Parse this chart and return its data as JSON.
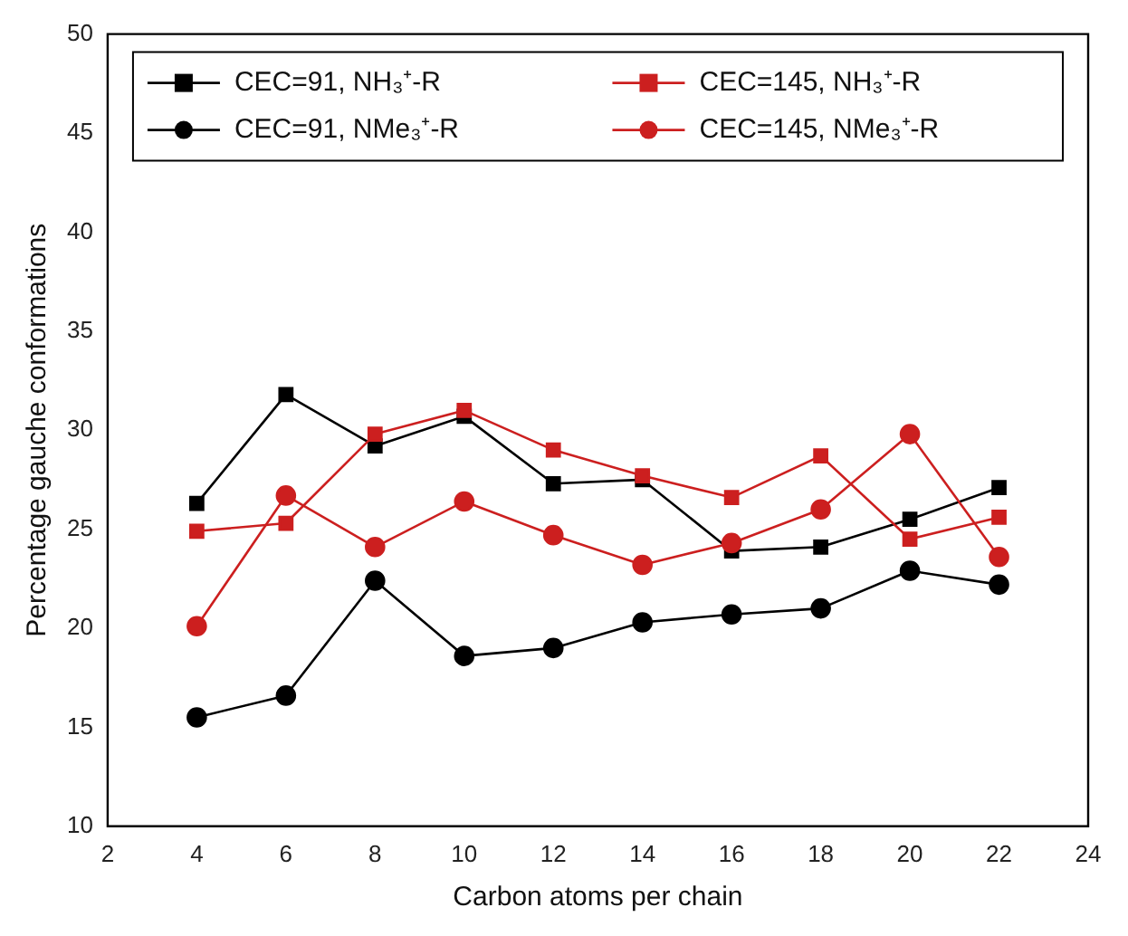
{
  "chart_data": {
    "type": "line",
    "xlabel": "Carbon atoms per chain",
    "ylabel": "Percentage gauche conformations",
    "x": [
      4,
      6,
      8,
      10,
      12,
      14,
      16,
      18,
      20,
      22
    ],
    "xlim": [
      2,
      24
    ],
    "xticks": [
      2,
      4,
      6,
      8,
      10,
      12,
      14,
      16,
      18,
      20,
      22,
      24
    ],
    "ylim": [
      10,
      50
    ],
    "yticks": [
      10,
      15,
      20,
      25,
      30,
      35,
      40,
      45,
      50
    ],
    "grid": false,
    "legend": "top",
    "series": [
      {
        "name": "CEC=91, NH₃⁺-R",
        "color": "#000000",
        "marker": "square",
        "values": [
          26.3,
          31.8,
          29.2,
          30.7,
          27.3,
          27.5,
          23.9,
          24.1,
          25.5,
          27.1
        ]
      },
      {
        "name": "CEC=145, NH₃⁺-R",
        "color": "#cc1f1f",
        "marker": "square",
        "values": [
          24.9,
          25.3,
          29.8,
          31.0,
          29.0,
          27.7,
          26.6,
          28.7,
          24.5,
          25.6
        ]
      },
      {
        "name": "CEC=91, NMe₃⁺-R",
        "color": "#000000",
        "marker": "circle",
        "values": [
          15.5,
          16.6,
          22.4,
          18.6,
          19.0,
          20.3,
          20.7,
          21.0,
          22.9,
          22.2
        ]
      },
      {
        "name": "CEC=145, NMe₃⁺-R",
        "color": "#cc1f1f",
        "marker": "circle",
        "values": [
          20.1,
          26.7,
          24.1,
          26.4,
          24.7,
          23.2,
          24.3,
          26.0,
          29.8,
          23.6
        ]
      }
    ]
  }
}
